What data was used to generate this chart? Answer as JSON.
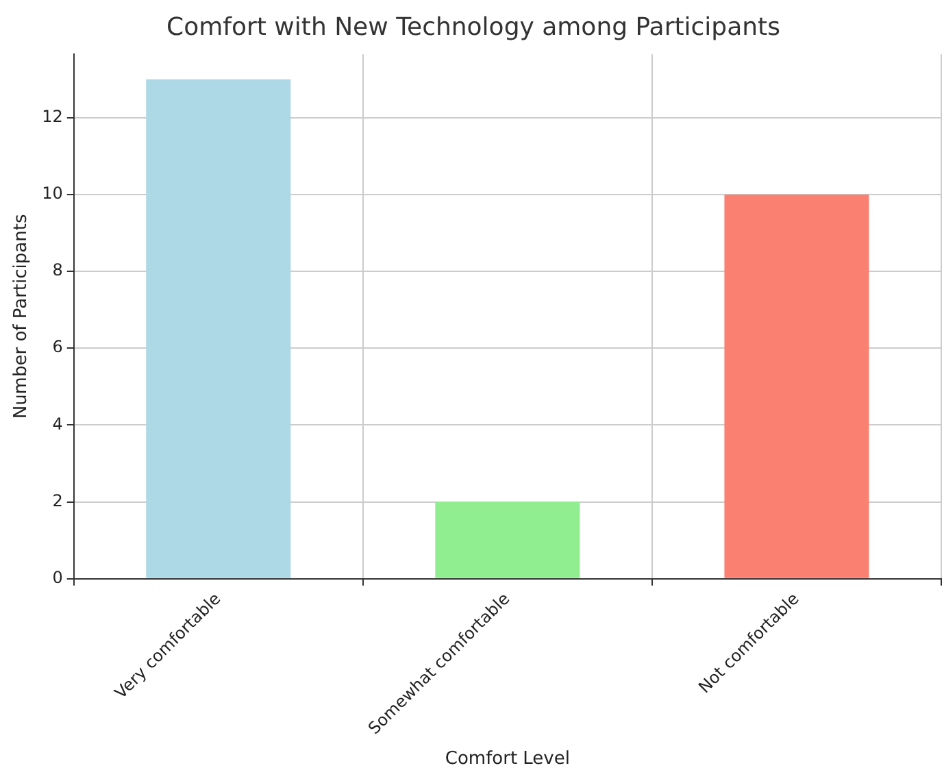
{
  "chart_data": {
    "type": "bar",
    "title": "Comfort with New Technology among Participants",
    "xlabel": "Comfort Level",
    "ylabel": "Number of Participants",
    "categories": [
      "Very comfortable",
      "Somewhat comfortable",
      "Not comfortable"
    ],
    "values": [
      13,
      2,
      10
    ],
    "colors": [
      "#add8e6",
      "#90ee90",
      "#fa8072"
    ],
    "ylim": [
      0,
      13.65
    ],
    "yticks": [
      0,
      2,
      4,
      6,
      8,
      10,
      12
    ],
    "grid": true,
    "legend": false
  }
}
